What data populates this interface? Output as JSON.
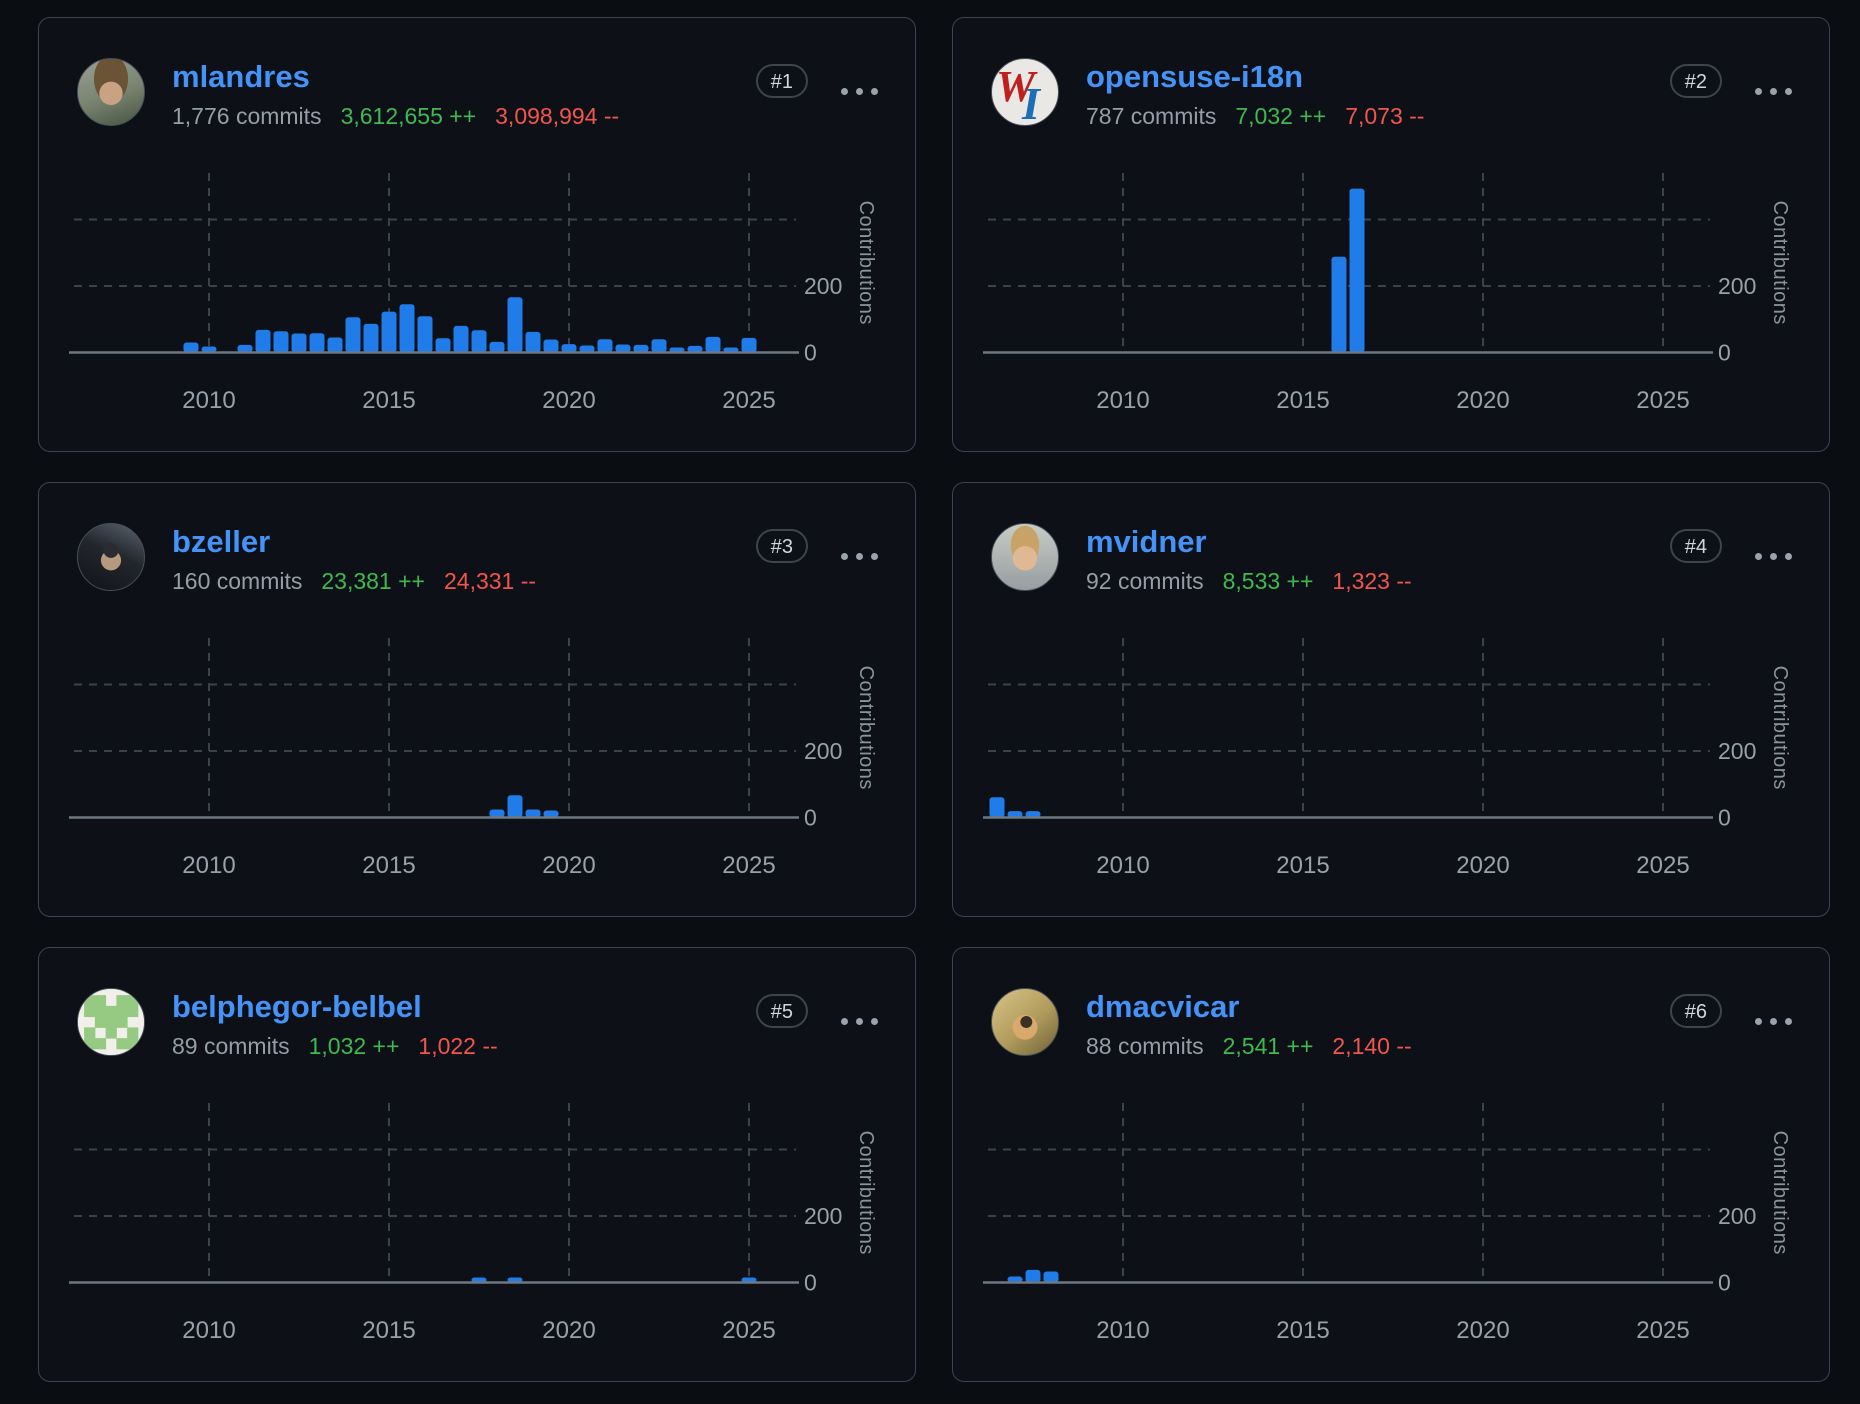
{
  "axis": {
    "x_ticks": [
      "2010",
      "2015",
      "2020",
      "2025"
    ],
    "y_ticks_display": [
      {
        "label": "200",
        "value": 200
      },
      {
        "label": "0",
        "value": 0
      }
    ],
    "y_gridlines": [
      200,
      400
    ],
    "ylabel": "Contributions",
    "ylim": [
      0,
      540
    ],
    "x_range_years": [
      2006.25,
      2026.2
    ]
  },
  "colors": {
    "bar": "#1f7ce8",
    "link": "#4493f8",
    "additions": "#3fb950",
    "deletions": "#f2554d",
    "muted_text": "#959ea8",
    "card_border": "#3d444d",
    "card_bg": "#0d1117"
  },
  "contributors": [
    {
      "rank": "#1",
      "username": "mlandres",
      "commits": "1,776 commits",
      "additions": "3,612,655 ++",
      "deletions": "3,098,994 --",
      "avatar": {
        "kind": "photo",
        "description": "man with brown hair outdoors"
      },
      "chart_data": {
        "type": "bar",
        "title": "mlandres contributions per half-year",
        "x": [
          2009.5,
          2010,
          2011,
          2011.5,
          2012,
          2012.5,
          2013,
          2013.5,
          2014,
          2014.5,
          2015,
          2015.5,
          2016,
          2016.5,
          2017,
          2017.5,
          2018,
          2018.5,
          2019,
          2019.5,
          2020,
          2020.5,
          2021,
          2021.5,
          2022,
          2022.5,
          2023,
          2023.5,
          2024,
          2024.5,
          2025
        ],
        "values": [
          27,
          15,
          20,
          65,
          61,
          54,
          55,
          42,
          103,
          83,
          120,
          142,
          106,
          40,
          77,
          64,
          29,
          163,
          59,
          36,
          22,
          18,
          37,
          21,
          20,
          37,
          12,
          17,
          44,
          7,
          41
        ]
      }
    },
    {
      "rank": "#2",
      "username": "opensuse-i18n",
      "commits": "787 commits",
      "additions": "7,032 ++",
      "deletions": "7,073 --",
      "avatar": {
        "kind": "logo",
        "description": "WI serif logo, red W and blue I",
        "letters": [
          "W",
          "I"
        ]
      },
      "chart_data": {
        "type": "bar",
        "title": "opensuse-i18n contributions per half-year",
        "x": [
          2016,
          2016.5
        ],
        "values": [
          285,
          490
        ]
      }
    },
    {
      "rank": "#3",
      "username": "bzeller",
      "commits": "160 commits",
      "additions": "23,381 ++",
      "deletions": "24,331 --",
      "avatar": {
        "kind": "photo",
        "description": "man with sunglasses, dark photo"
      },
      "chart_data": {
        "type": "bar",
        "title": "bzeller contributions per half-year",
        "x": [
          2018,
          2018.5,
          2019,
          2019.5
        ],
        "values": [
          21,
          64,
          21,
          18
        ]
      }
    },
    {
      "rank": "#4",
      "username": "mvidner",
      "commits": "92 commits",
      "additions": "8,533 ++",
      "deletions": "1,323 --",
      "avatar": {
        "kind": "photo",
        "description": "smiling man with glasses"
      },
      "chart_data": {
        "type": "bar",
        "title": "mvidner contributions per half-year",
        "x": [
          2006.5,
          2007,
          2007.5
        ],
        "values": [
          58,
          16,
          16
        ]
      }
    },
    {
      "rank": "#5",
      "username": "belphegor-belbel",
      "commits": "89 commits",
      "additions": "1,032 ++",
      "deletions": "1,022 --",
      "avatar": {
        "kind": "identicon",
        "description": "green identicon",
        "bg": "#f0efe9",
        "fg": "#96ca82",
        "pattern": [
          [
            1,
            1,
            0,
            1,
            1
          ],
          [
            1,
            1,
            1,
            1,
            1
          ],
          [
            0,
            1,
            1,
            1,
            0
          ],
          [
            1,
            0,
            1,
            0,
            1
          ],
          [
            1,
            1,
            0,
            1,
            1
          ]
        ]
      },
      "chart_data": {
        "type": "bar",
        "title": "belphegor-belbel contributions per half-year",
        "x": [
          2017.5,
          2018.5,
          2025
        ],
        "values": [
          12,
          11,
          12
        ]
      }
    },
    {
      "rank": "#6",
      "username": "dmacvicar",
      "commits": "88 commits",
      "additions": "2,541 ++",
      "deletions": "2,140 --",
      "avatar": {
        "kind": "photo",
        "description": "man with glasses, yellowish photo"
      },
      "chart_data": {
        "type": "bar",
        "title": "dmacvicar contributions per half-year",
        "x": [
          2007,
          2007.5,
          2008
        ],
        "values": [
          15,
          35,
          30
        ]
      }
    }
  ]
}
